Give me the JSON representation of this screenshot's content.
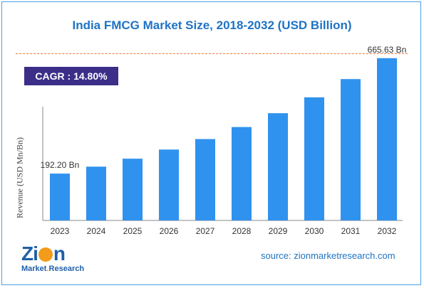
{
  "chart_data": {
    "type": "bar",
    "title": "India FMCG Market Size, 2018-2032 (USD Billion)",
    "ylabel": "Revenue (USD Mn/Bn)",
    "xlabel": "",
    "categories": [
      "2023",
      "2024",
      "2025",
      "2026",
      "2027",
      "2028",
      "2029",
      "2030",
      "2031",
      "2032"
    ],
    "values": [
      192.2,
      220.6,
      253.3,
      290.8,
      333.8,
      383.2,
      439.9,
      505.0,
      579.8,
      665.63
    ],
    "ylim": [
      0,
      700
    ],
    "grid": false,
    "bar_color": "#2f92ee",
    "data_labels": [
      {
        "index": 0,
        "text": "192.20 Bn"
      },
      {
        "index": 9,
        "text": "665.63 Bn"
      }
    ]
  },
  "cagr": {
    "text": "CAGR :  14.80%"
  },
  "source": {
    "text": "source: zionmarketresearch.com"
  },
  "logo": {
    "brand": "ZION",
    "sub": "Market.Research"
  }
}
